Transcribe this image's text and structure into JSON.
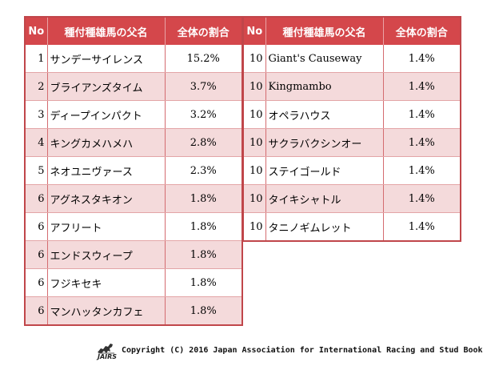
{
  "headers": {
    "no": "No",
    "sire": "種付種雄馬の父名",
    "share": "全体の割合"
  },
  "left_rows": [
    {
      "no": "1",
      "name": "サンデーサイレンス",
      "pct": "15.2%"
    },
    {
      "no": "2",
      "name": "ブライアンズタイム",
      "pct": "3.7%"
    },
    {
      "no": "3",
      "name": "ディープインパクト",
      "pct": "3.2%"
    },
    {
      "no": "4",
      "name": "キングカメハメハ",
      "pct": "2.8%"
    },
    {
      "no": "5",
      "name": "ネオユニヴァース",
      "pct": "2.3%"
    },
    {
      "no": "6",
      "name": "アグネスタキオン",
      "pct": "1.8%"
    },
    {
      "no": "6",
      "name": "アフリート",
      "pct": "1.8%"
    },
    {
      "no": "6",
      "name": "エンドスウィープ",
      "pct": "1.8%"
    },
    {
      "no": "6",
      "name": "フジキセキ",
      "pct": "1.8%"
    },
    {
      "no": "6",
      "name": "マンハッタンカフェ",
      "pct": "1.8%"
    }
  ],
  "right_rows": [
    {
      "no": "10",
      "name": "Giant's Causeway",
      "pct": "1.4%"
    },
    {
      "no": "10",
      "name": "Kingmambo",
      "pct": "1.4%"
    },
    {
      "no": "10",
      "name": "オペラハウス",
      "pct": "1.4%"
    },
    {
      "no": "10",
      "name": "サクラバクシンオー",
      "pct": "1.4%"
    },
    {
      "no": "10",
      "name": "ステイゴールド",
      "pct": "1.4%"
    },
    {
      "no": "10",
      "name": "タイキシャトル",
      "pct": "1.4%"
    },
    {
      "no": "10",
      "name": "タニノギムレット",
      "pct": "1.4%"
    }
  ],
  "footer": {
    "logo_text": "JAIRS",
    "copyright": "Copyright (C) 2016 Japan Association for International Racing and Stud Book"
  },
  "colors": {
    "header_bg": "#d4474b",
    "row_tint": "#f4dadb",
    "border": "#c0464a"
  }
}
